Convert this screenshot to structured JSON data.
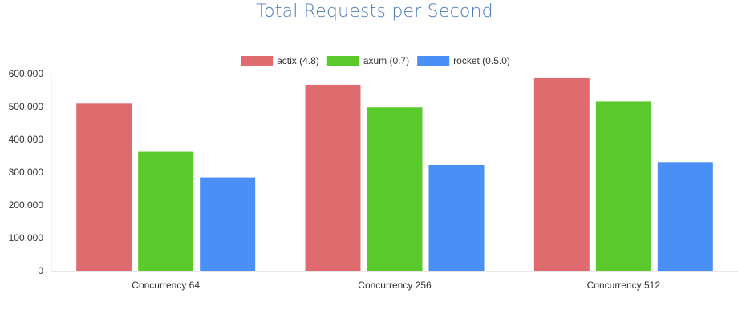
{
  "chart_data": {
    "type": "bar",
    "title": "Total Requests per Second",
    "categories": [
      "Concurrency 64",
      "Concurrency 256",
      "Concurrency 512"
    ],
    "series": [
      {
        "name": "actix (4.8)",
        "color": "#e06b6f",
        "values": [
          509000,
          566000,
          588000
        ]
      },
      {
        "name": "axum (0.7)",
        "color": "#5ac92b",
        "values": [
          362000,
          497000,
          516000
        ]
      },
      {
        "name": "rocket (0.5.0)",
        "color": "#4a8ff5",
        "values": [
          284000,
          322000,
          331000
        ]
      }
    ],
    "y_ticks": [
      "0",
      "100,000",
      "200,000",
      "300,000",
      "400,000",
      "500,000",
      "600,000"
    ],
    "ylim": [
      0,
      600000
    ],
    "legend_position": "top-center",
    "grid": false
  }
}
